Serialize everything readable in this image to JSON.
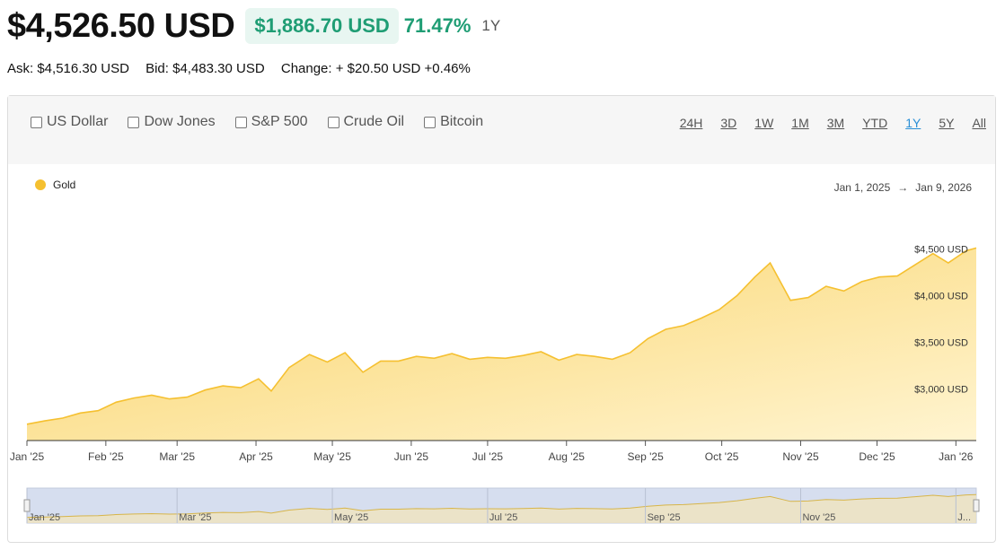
{
  "header": {
    "price": "$4,526.50 USD",
    "change_amount": "$1,886.70 USD",
    "change_percent": "71.47%",
    "period": "1Y"
  },
  "quote": {
    "ask": "Ask: $4,516.30 USD",
    "bid": "Bid: $4,483.30 USD",
    "change": "Change: + $20.50 USD +0.46%"
  },
  "compare": [
    "US Dollar",
    "Dow Jones",
    "S&P 500",
    "Crude Oil",
    "Bitcoin"
  ],
  "ranges": [
    "24H",
    "3D",
    "1W",
    "1M",
    "3M",
    "YTD",
    "1Y",
    "5Y",
    "All"
  ],
  "active_range": "1Y",
  "date_range": {
    "from": "Jan 1, 2025",
    "arrow": "→",
    "to": "Jan 9, 2026"
  },
  "colors": {
    "gold": "#f5c030",
    "accent_green": "#1f9d74",
    "active_link": "#2a8fd6"
  },
  "chart_data": {
    "type": "area",
    "series": [
      {
        "name": "Gold"
      }
    ],
    "x_ticks": [
      "Jan '25",
      "Feb '25",
      "Mar '25",
      "Apr '25",
      "May '25",
      "Jun '25",
      "Jul '25",
      "Aug '25",
      "Sep '25",
      "Oct '25",
      "Nov '25",
      "Dec '25",
      "Jan '26"
    ],
    "navigator_ticks": [
      "Jan '25",
      "Mar '25",
      "May '25",
      "Jul '25",
      "Sep '25",
      "Nov '25",
      "J..."
    ],
    "y_ticks": [
      3000,
      3500,
      4000,
      4500
    ],
    "y_tick_labels": [
      "$3,000 USD",
      "$3,500 USD",
      "$4,000 USD",
      "$4,500 USD"
    ],
    "ylim": [
      2450,
      4600
    ],
    "x": [
      "2025-01-01",
      "2025-01-08",
      "2025-01-15",
      "2025-01-22",
      "2025-01-29",
      "2025-02-05",
      "2025-02-12",
      "2025-02-19",
      "2025-02-26",
      "2025-03-05",
      "2025-03-12",
      "2025-03-19",
      "2025-03-26",
      "2025-04-02",
      "2025-04-07",
      "2025-04-14",
      "2025-04-22",
      "2025-04-29",
      "2025-05-06",
      "2025-05-13",
      "2025-05-20",
      "2025-05-27",
      "2025-06-03",
      "2025-06-10",
      "2025-06-17",
      "2025-06-24",
      "2025-07-01",
      "2025-07-08",
      "2025-07-15",
      "2025-07-22",
      "2025-07-29",
      "2025-08-05",
      "2025-08-12",
      "2025-08-19",
      "2025-08-26",
      "2025-09-02",
      "2025-09-09",
      "2025-09-16",
      "2025-09-23",
      "2025-09-30",
      "2025-10-07",
      "2025-10-14",
      "2025-10-20",
      "2025-10-28",
      "2025-11-04",
      "2025-11-11",
      "2025-11-18",
      "2025-11-25",
      "2025-12-02",
      "2025-12-09",
      "2025-12-16",
      "2025-12-23",
      "2025-12-29",
      "2026-01-05",
      "2026-01-09"
    ],
    "values": [
      2625,
      2660,
      2690,
      2745,
      2770,
      2860,
      2905,
      2935,
      2895,
      2915,
      2990,
      3035,
      3015,
      3110,
      2980,
      3230,
      3370,
      3290,
      3390,
      3180,
      3300,
      3300,
      3350,
      3330,
      3380,
      3320,
      3340,
      3330,
      3360,
      3400,
      3310,
      3370,
      3350,
      3320,
      3390,
      3540,
      3640,
      3680,
      3760,
      3850,
      4000,
      4200,
      4350,
      3950,
      3980,
      4100,
      4050,
      4150,
      4200,
      4210,
      4330,
      4450,
      4350,
      4480,
      4510
    ]
  }
}
